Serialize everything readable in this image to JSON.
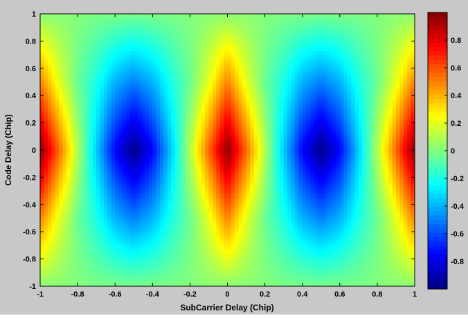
{
  "chart_data": {
    "type": "heatmap",
    "title": "",
    "xlabel": "SubCarrier Delay (Chip)",
    "ylabel": "Code Delay (Chip)",
    "xlim": [
      -1,
      1
    ],
    "ylim": [
      -1,
      1
    ],
    "x_ticks": [
      "-1",
      "-0.8",
      "-0.6",
      "-0.4",
      "-0.2",
      "0",
      "0.2",
      "0.4",
      "0.6",
      "0.8",
      "1"
    ],
    "y_ticks": [
      "-1",
      "-0.8",
      "-0.6",
      "-0.4",
      "-0.2",
      "0",
      "0.2",
      "0.4",
      "0.6",
      "0.8",
      "1"
    ],
    "colorbar": {
      "range": [
        -1,
        1
      ],
      "ticks": [
        "-0.8",
        "-0.6",
        "-0.4",
        "-0.2",
        "0",
        "0.2",
        "0.4",
        "0.6",
        "0.8"
      ],
      "colormap": "jet",
      "placement": "right"
    },
    "x": [
      -1.0,
      -0.9,
      -0.8,
      -0.7,
      -0.6,
      -0.5,
      -0.4,
      -0.3,
      -0.2,
      -0.1,
      0.0,
      0.1,
      0.2,
      0.3,
      0.4,
      0.5,
      0.6,
      0.7,
      0.8,
      0.9,
      1.0
    ],
    "y": [
      -1.0,
      -0.5,
      0.0,
      0.5,
      1.0
    ],
    "z": [
      [
        0.02,
        0.02,
        0.01,
        -0.01,
        -0.01,
        -0.02,
        -0.01,
        -0.01,
        0.01,
        0.02,
        0.02,
        0.02,
        0.01,
        -0.01,
        -0.01,
        -0.02,
        -0.01,
        -0.01,
        0.01,
        0.02,
        0.02
      ],
      [
        0.5,
        0.2,
        -0.04,
        -0.2,
        -0.4,
        -0.5,
        -0.4,
        -0.2,
        -0.04,
        0.2,
        0.5,
        0.2,
        -0.04,
        -0.2,
        -0.4,
        -0.5,
        -0.4,
        -0.2,
        -0.04,
        0.2,
        0.5
      ],
      [
        0.98,
        0.55,
        0.1,
        -0.35,
        -0.75,
        -0.98,
        -0.75,
        -0.35,
        0.1,
        0.55,
        0.98,
        0.55,
        0.1,
        -0.35,
        -0.75,
        -0.98,
        -0.75,
        -0.35,
        0.1,
        0.55,
        0.98
      ],
      [
        0.5,
        0.2,
        -0.04,
        -0.2,
        -0.4,
        -0.5,
        -0.4,
        -0.2,
        -0.04,
        0.2,
        0.5,
        0.2,
        -0.04,
        -0.2,
        -0.4,
        -0.5,
        -0.4,
        -0.2,
        -0.04,
        0.2,
        0.5
      ],
      [
        0.02,
        0.02,
        0.01,
        -0.01,
        -0.01,
        -0.02,
        -0.01,
        -0.01,
        0.01,
        0.02,
        0.02,
        0.02,
        0.01,
        -0.01,
        -0.01,
        -0.02,
        -0.01,
        -0.01,
        0.01,
        0.02,
        0.02
      ]
    ]
  }
}
